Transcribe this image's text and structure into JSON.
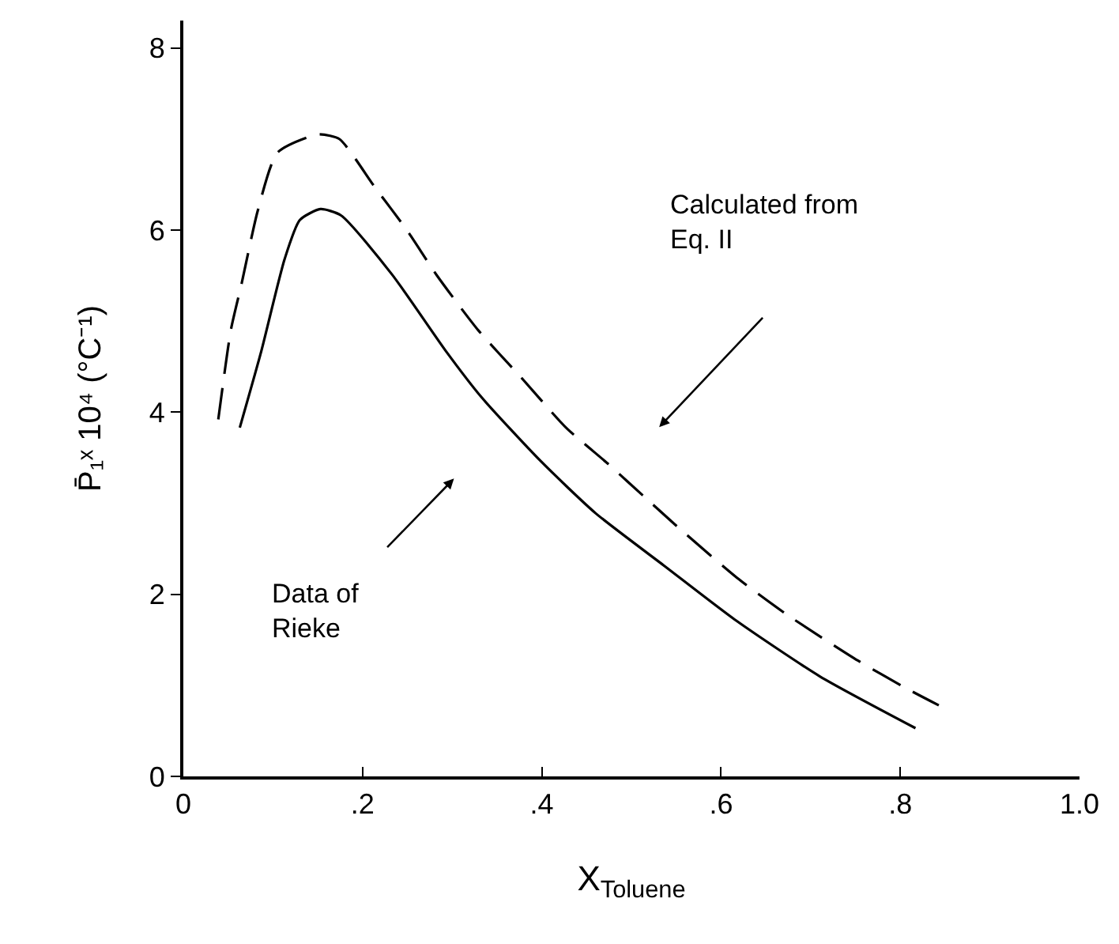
{
  "chart_data": {
    "type": "line",
    "xlabel": "X$_{Toluene}$",
    "ylabel": "P̄₁ˣ 10⁴ (°C⁻¹)",
    "series": [
      {
        "color": "#000000",
        "line_style": "solid",
        "x": [
          0.063,
          0.087,
          0.113,
          0.13,
          0.153,
          0.176,
          0.233,
          0.293,
          0.333,
          0.399,
          0.46,
          0.537,
          0.617,
          0.71,
          0.817
        ],
        "values": [
          3.83,
          4.67,
          5.68,
          6.11,
          6.23,
          6.16,
          5.51,
          4.67,
          4.16,
          3.46,
          2.89,
          2.31,
          1.71,
          1.1,
          0.53
        ]
      },
      {
        "color": "#000000",
        "line_style": "dashed",
        "x": [
          0.039,
          0.053,
          0.065,
          0.083,
          0.105,
          0.15,
          0.174,
          0.213,
          0.25,
          0.283,
          0.329,
          0.377,
          0.427,
          0.473,
          0.52,
          0.555,
          0.618,
          0.673,
          0.753,
          0.808,
          0.843
        ],
        "values": [
          3.92,
          4.9,
          5.41,
          6.21,
          6.85,
          7.05,
          7.0,
          6.48,
          5.99,
          5.5,
          4.9,
          4.38,
          3.83,
          3.44,
          3.02,
          2.71,
          2.18,
          1.78,
          1.27,
          0.96,
          0.78
        ]
      }
    ],
    "annotations": [
      "Calculated from\nEq. II",
      "Data of\nRieke"
    ],
    "xlim": [
      0,
      1.0
    ],
    "ylim": [
      0,
      8.3
    ],
    "xticks": [
      0,
      {
        "value": 0.2,
        "label": ".2"
      },
      {
        "value": 0.4,
        "label": ".4"
      },
      {
        "value": 0.6,
        "label": ".6"
      },
      {
        "value": 0.8,
        "label": ".8"
      },
      {
        "value": 1.0,
        "label": "1.0"
      }
    ],
    "yticks": [
      0,
      2,
      4,
      6,
      8
    ],
    "marker": "none"
  }
}
